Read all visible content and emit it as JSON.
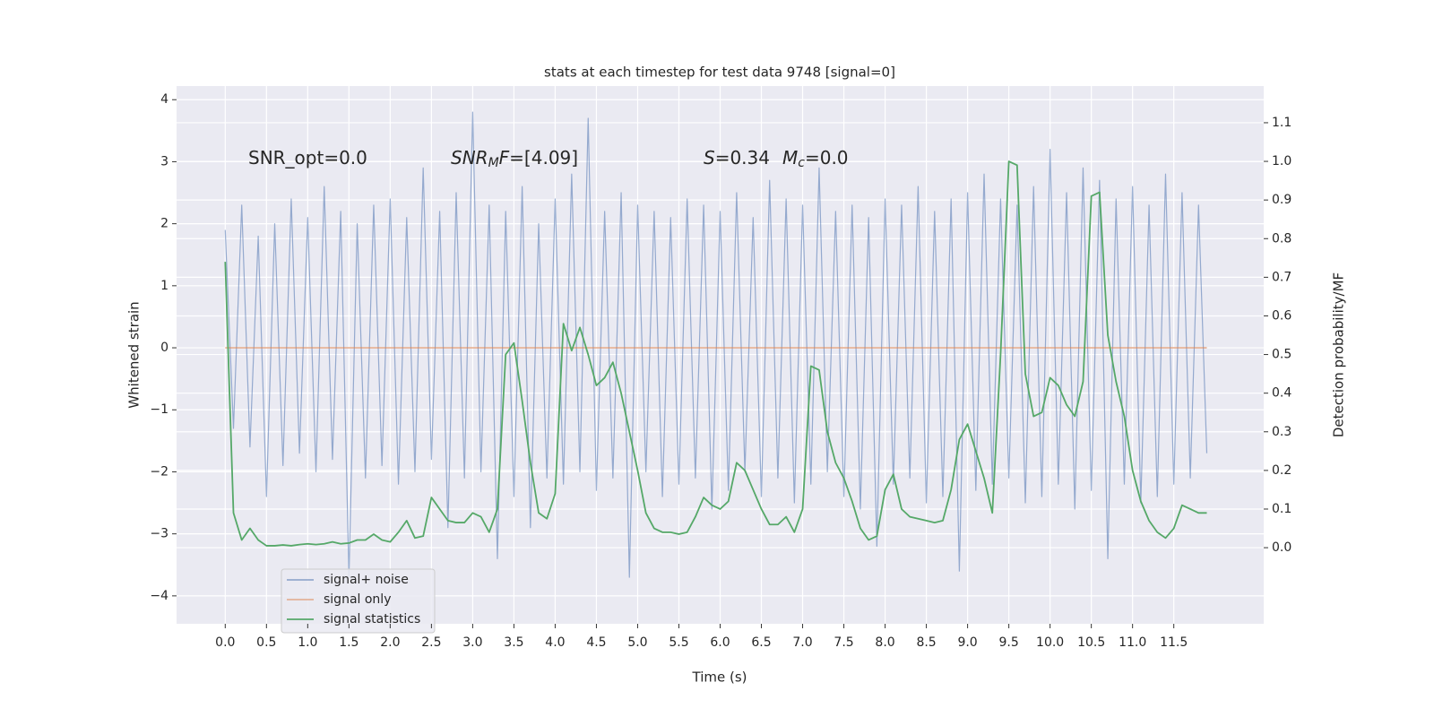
{
  "chart_data": {
    "type": "line",
    "title": "stats at each timestep for test data 9748 [signal=0]",
    "xlabel": "Time (s)",
    "ylabel": "Whitened strain",
    "y2label": "Detection probability/MF",
    "annotations": [
      [
        "SNR_opt=0.0"
      ],
      [
        "SNR",
        "M",
        "F",
        "=[4.09]"
      ],
      [
        "S",
        "=0.34",
        "M",
        "c",
        "=0.0"
      ]
    ],
    "grid": true,
    "legend": "lower left",
    "xlim": [
      -0.59,
      12.59
    ],
    "ylim": [
      -4.45,
      4.22
    ],
    "y2lim": [
      -0.197,
      1.195
    ],
    "xticks": [
      {
        "value": 0,
        "label": "0.0"
      },
      0.5,
      {
        "value": 1,
        "label": "1.0"
      },
      1.5,
      {
        "value": 2,
        "label": "2.0"
      },
      2.5,
      {
        "value": 3,
        "label": "3.0"
      },
      3.5,
      {
        "value": 4,
        "label": "4.0"
      },
      4.5,
      {
        "value": 5,
        "label": "5.0"
      },
      5.5,
      {
        "value": 6,
        "label": "6.0"
      },
      6.5,
      {
        "value": 7,
        "label": "7.0"
      },
      7.5,
      {
        "value": 8,
        "label": "8.0"
      },
      8.5,
      {
        "value": 9,
        "label": "9.0"
      },
      9.5,
      {
        "value": 10,
        "label": "10.0"
      },
      10.5,
      {
        "value": 11,
        "label": "11.0"
      },
      11.5
    ],
    "yticks": [
      {
        "value": -4,
        "label": "−4"
      },
      {
        "value": -3,
        "label": "−3"
      },
      {
        "value": -2,
        "label": "−2"
      },
      {
        "value": -1,
        "label": "−1"
      },
      0,
      1,
      2,
      3,
      4
    ],
    "y2ticks": [
      {
        "value": 0,
        "label": "0.0"
      },
      0.1,
      0.2,
      0.3,
      0.4,
      0.5,
      0.6,
      0.7,
      0.8,
      0.9,
      {
        "value": 1,
        "label": "1.0"
      },
      1.1
    ],
    "x": [
      0,
      0.1,
      0.2,
      0.3,
      0.4,
      0.5,
      0.6,
      0.7,
      0.8,
      0.9,
      1,
      1.1,
      1.2,
      1.3,
      1.4,
      1.5,
      1.6,
      1.7,
      1.8,
      1.9,
      2,
      2.1,
      2.2,
      2.3,
      2.4,
      2.5,
      2.6,
      2.7,
      2.8,
      2.9,
      3,
      3.1,
      3.2,
      3.3,
      3.4,
      3.5,
      3.6,
      3.7,
      3.8,
      3.9,
      4,
      4.1,
      4.2,
      4.3,
      4.4,
      4.5,
      4.6,
      4.7,
      4.8,
      4.9,
      5,
      5.1,
      5.2,
      5.3,
      5.4,
      5.5,
      5.6,
      5.7,
      5.8,
      5.9,
      6,
      6.1,
      6.2,
      6.3,
      6.4,
      6.5,
      6.6,
      6.7,
      6.8,
      6.9,
      7,
      7.1,
      7.2,
      7.3,
      7.4,
      7.5,
      7.6,
      7.7,
      7.8,
      7.9,
      8,
      8.1,
      8.2,
      8.3,
      8.4,
      8.5,
      8.6,
      8.7,
      8.8,
      8.9,
      9,
      9.1,
      9.2,
      9.3,
      9.4,
      9.5,
      9.6,
      9.7,
      9.8,
      9.9,
      10,
      10.1,
      10.2,
      10.3,
      10.4,
      10.5,
      10.6,
      10.7,
      10.8,
      10.9,
      11,
      11.1,
      11.2,
      11.3,
      11.4,
      11.5,
      11.6,
      11.7,
      11.8,
      11.9
    ],
    "series": [
      {
        "name": "signal+ noise",
        "color": "#4c72b0",
        "values": [
          1.9,
          -1.3,
          2.3,
          -1.6,
          1.8,
          -2.4,
          2.0,
          -1.9,
          2.4,
          -1.7,
          2.1,
          -2.0,
          2.6,
          -1.8,
          2.2,
          -3.7,
          2.0,
          -2.1,
          2.3,
          -1.9,
          2.4,
          -2.2,
          2.1,
          -2.0,
          2.9,
          -1.8,
          2.2,
          -2.9,
          2.5,
          -2.1,
          3.8,
          -2.0,
          2.3,
          -3.4,
          2.2,
          -2.4,
          2.6,
          -2.9,
          2.0,
          -2.1,
          2.4,
          -2.2,
          2.8,
          -2.0,
          3.7,
          -2.3,
          2.2,
          -2.1,
          2.5,
          -3.7,
          2.3,
          -2.0,
          2.2,
          -2.4,
          2.1,
          -2.2,
          2.4,
          -2.1,
          2.3,
          -2.6,
          2.2,
          -2.3,
          2.5,
          -2.0,
          2.1,
          -2.4,
          2.7,
          -2.1,
          2.4,
          -2.5,
          2.3,
          -2.2,
          2.9,
          -2.0,
          2.2,
          -2.4,
          2.3,
          -2.6,
          2.1,
          -3.2,
          2.4,
          -2.2,
          2.3,
          -2.1,
          2.6,
          -2.5,
          2.2,
          -2.4,
          2.4,
          -3.6,
          2.5,
          -2.3,
          2.8,
          -2.2,
          2.4,
          -2.1,
          2.3,
          -2.5,
          2.6,
          -2.4,
          3.2,
          -2.2,
          2.5,
          -2.6,
          2.9,
          -2.3,
          2.7,
          -3.4,
          2.4,
          -2.2,
          2.6,
          -2.5,
          2.3,
          -2.4,
          2.8,
          -2.2,
          2.5,
          -2.1,
          2.3,
          -1.7
        ]
      },
      {
        "name": "signal only",
        "color": "#dd8452",
        "values": [
          0,
          0,
          0,
          0,
          0,
          0,
          0,
          0,
          0,
          0,
          0,
          0,
          0,
          0,
          0,
          0,
          0,
          0,
          0,
          0,
          0,
          0,
          0,
          0,
          0,
          0,
          0,
          0,
          0,
          0,
          0,
          0,
          0,
          0,
          0,
          0,
          0,
          0,
          0,
          0,
          0,
          0,
          0,
          0,
          0,
          0,
          0,
          0,
          0,
          0,
          0,
          0,
          0,
          0,
          0,
          0,
          0,
          0,
          0,
          0,
          0,
          0,
          0,
          0,
          0,
          0,
          0,
          0,
          0,
          0,
          0,
          0,
          0,
          0,
          0,
          0,
          0,
          0,
          0,
          0,
          0,
          0,
          0,
          0,
          0,
          0,
          0,
          0,
          0,
          0,
          0,
          0,
          0,
          0,
          0,
          0,
          0,
          0,
          0,
          0,
          0,
          0,
          0,
          0,
          0,
          0,
          0,
          0,
          0,
          0,
          0,
          0,
          0,
          0,
          0,
          0,
          0,
          0,
          0,
          0
        ]
      },
      {
        "name": "signal statistics",
        "color": "#55a868",
        "axis": "y2",
        "values": [
          0.74,
          0.09,
          0.02,
          0.05,
          0.02,
          0.005,
          0.005,
          0.007,
          0.005,
          0.008,
          0.01,
          0.008,
          0.01,
          0.015,
          0.01,
          0.012,
          0.02,
          0.02,
          0.035,
          0.02,
          0.015,
          0.04,
          0.07,
          0.025,
          0.03,
          0.13,
          0.1,
          0.07,
          0.065,
          0.065,
          0.09,
          0.08,
          0.04,
          0.1,
          0.5,
          0.53,
          0.38,
          0.22,
          0.09,
          0.075,
          0.14,
          0.58,
          0.51,
          0.57,
          0.5,
          0.42,
          0.44,
          0.48,
          0.4,
          0.3,
          0.2,
          0.09,
          0.05,
          0.04,
          0.04,
          0.035,
          0.04,
          0.08,
          0.13,
          0.11,
          0.1,
          0.12,
          0.22,
          0.2,
          0.15,
          0.1,
          0.06,
          0.06,
          0.08,
          0.04,
          0.1,
          0.47,
          0.46,
          0.3,
          0.22,
          0.18,
          0.12,
          0.05,
          0.02,
          0.03,
          0.15,
          0.19,
          0.1,
          0.08,
          0.075,
          0.07,
          0.065,
          0.07,
          0.15,
          0.28,
          0.32,
          0.25,
          0.18,
          0.09,
          0.5,
          1.0,
          0.99,
          0.45,
          0.34,
          0.35,
          0.44,
          0.42,
          0.37,
          0.34,
          0.43,
          0.91,
          0.92,
          0.55,
          0.43,
          0.34,
          0.2,
          0.12,
          0.07,
          0.04,
          0.025,
          0.05,
          0.11,
          0.1,
          0.09,
          0.09
        ]
      }
    ]
  }
}
